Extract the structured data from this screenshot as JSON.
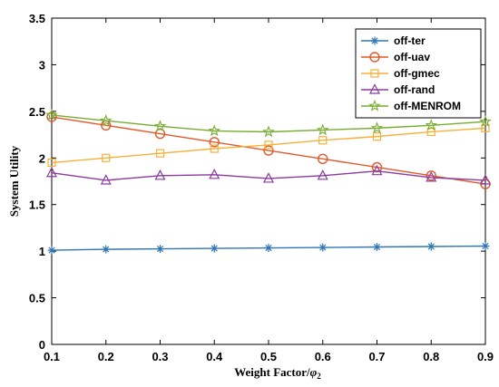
{
  "chart_data": {
    "type": "line",
    "title": "",
    "xlabel_main": "Weight Factor/",
    "xlabel_symbol": "φ",
    "xlabel_sub": "2",
    "ylabel": "System Utility",
    "x": [
      0.1,
      0.2,
      0.3,
      0.4,
      0.5,
      0.6,
      0.7,
      0.8,
      0.9
    ],
    "xlim": [
      0.1,
      0.9
    ],
    "ylim": [
      0,
      3.5
    ],
    "x_ticks": [
      "0.1",
      "0.2",
      "0.3",
      "0.4",
      "0.5",
      "0.6",
      "0.7",
      "0.8",
      "0.9"
    ],
    "y_ticks": [
      "0",
      "0.5",
      "1",
      "1.5",
      "2",
      "2.5",
      "3",
      "3.5"
    ],
    "legend_position": "top-right",
    "grid": false,
    "series": [
      {
        "name": "off-ter",
        "color": "#2e75b6",
        "marker": "asterisk",
        "values": [
          1.01,
          1.02,
          1.025,
          1.03,
          1.035,
          1.04,
          1.045,
          1.05,
          1.055
        ]
      },
      {
        "name": "off-uav",
        "color": "#e15a2c",
        "marker": "circle",
        "values": [
          2.44,
          2.35,
          2.26,
          2.17,
          2.08,
          1.99,
          1.9,
          1.81,
          1.72
        ]
      },
      {
        "name": "off-gmec",
        "color": "#f5b13a",
        "marker": "square",
        "values": [
          1.95,
          2.0,
          2.05,
          2.1,
          2.14,
          2.19,
          2.23,
          2.28,
          2.32
        ]
      },
      {
        "name": "off-rand",
        "color": "#8b3a9e",
        "marker": "triangle",
        "values": [
          1.84,
          1.76,
          1.81,
          1.82,
          1.78,
          1.81,
          1.86,
          1.79,
          1.76
        ]
      },
      {
        "name": "off-MENROM",
        "color": "#77ac30",
        "marker": "star",
        "values": [
          2.46,
          2.4,
          2.34,
          2.29,
          2.28,
          2.3,
          2.32,
          2.35,
          2.39
        ]
      }
    ]
  }
}
